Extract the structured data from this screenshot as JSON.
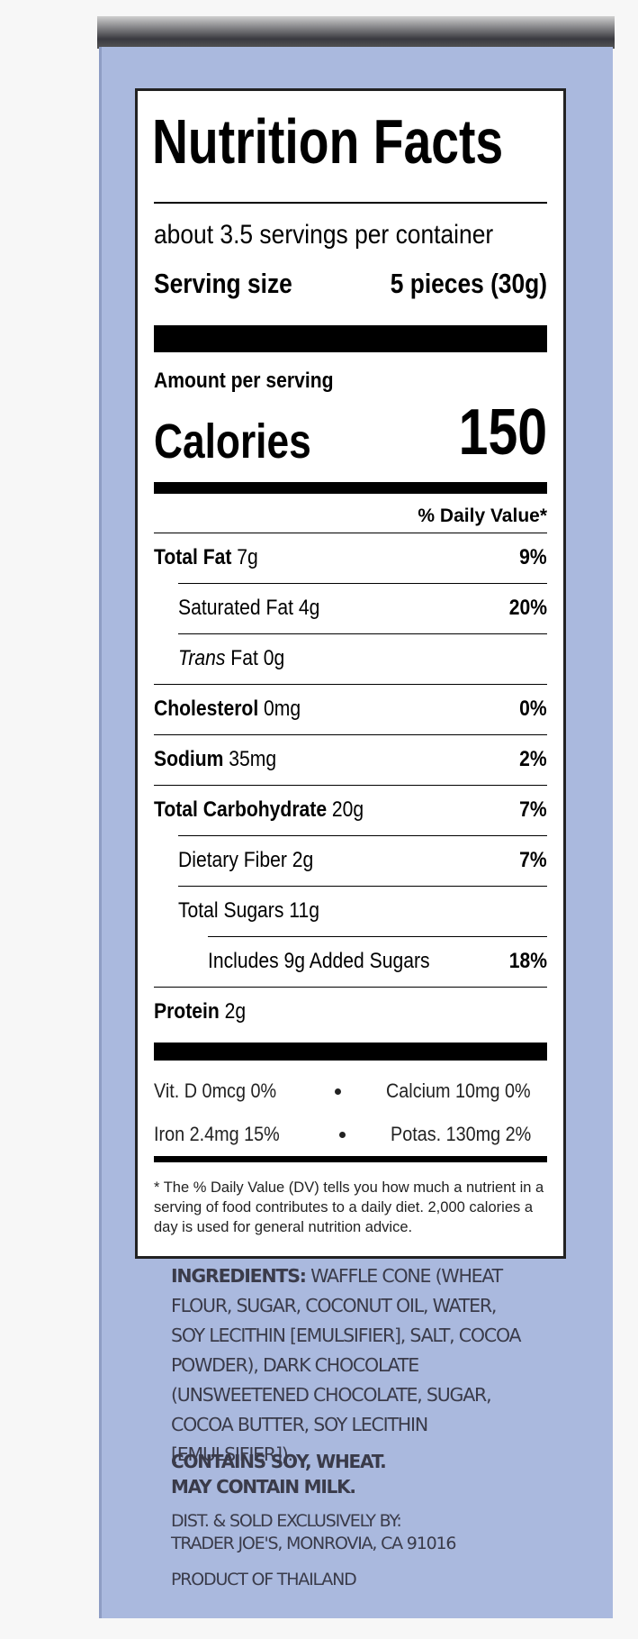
{
  "label": {
    "title": "Nutrition Facts",
    "servings": "about 3.5 servings per container",
    "serving_size_label": "Serving size",
    "serving_size_value": "5 pieces (30g)",
    "amount_per_serving": "Amount per serving",
    "calories_label": "Calories",
    "calories_value": "150",
    "daily_value_header": "% Daily Value*",
    "rows": [
      {
        "name": "Total Fat",
        "amount": "7g",
        "dv": "9%",
        "bold": true,
        "indent": 0
      },
      {
        "name": "Saturated Fat",
        "amount": "4g",
        "dv": "20%",
        "bold": false,
        "indent": 1
      },
      {
        "name_italic": "Trans",
        "name": "Fat",
        "amount": "0g",
        "bold": false,
        "indent": 1
      },
      {
        "name": "Cholesterol",
        "amount": "0mg",
        "dv": "0%",
        "bold": true,
        "indent": 0
      },
      {
        "name": "Sodium",
        "amount": "35mg",
        "dv": "2%",
        "bold": true,
        "indent": 0
      },
      {
        "name": "Total Carbohydrate",
        "amount": "20g",
        "dv": "7%",
        "bold": true,
        "indent": 0
      },
      {
        "name": "Dietary Fiber",
        "amount": "2g",
        "dv": "7%",
        "bold": false,
        "indent": 1
      },
      {
        "name": "Total Sugars",
        "amount": "11g",
        "bold": false,
        "indent": 1
      },
      {
        "name": "Includes 9g Added Sugars",
        "dv": "18%",
        "bold": false,
        "indent": 2
      },
      {
        "name": "Protein",
        "amount": "2g",
        "bold": true,
        "indent": 0
      }
    ],
    "vitamins": [
      [
        "Vit. D 0mcg 0%",
        "Calcium 10mg 0%"
      ],
      [
        "Iron 2.4mg 15%",
        "Potas. 130mg 2%"
      ]
    ],
    "footnote": "* The % Daily Value (DV) tells you how much a nutrient in a serving of food contributes to a daily diet. 2,000 calories a day is used for general nutrition advice."
  },
  "ingredients": {
    "heading": "INGREDIENTS:",
    "text": "WAFFLE CONE (WHEAT FLOUR, SUGAR, COCONUT OIL, WATER, SOY LECITHIN [EMULSIFIER], SALT, COCOA POWDER), DARK CHOCOLATE (UNSWEETENED CHOCOLATE, SUGAR, COCOA BUTTER, SOY LECITHIN [EMULSIFIER])."
  },
  "allergens": [
    "CONTAINS SOY, WHEAT.",
    "MAY CONTAIN MILK."
  ],
  "distributor": [
    "DIST. & SOLD EXCLUSIVELY BY:",
    "TRADER JOE'S, MONROVIA, CA 91016"
  ],
  "origin": "PRODUCT OF THAILAND"
}
